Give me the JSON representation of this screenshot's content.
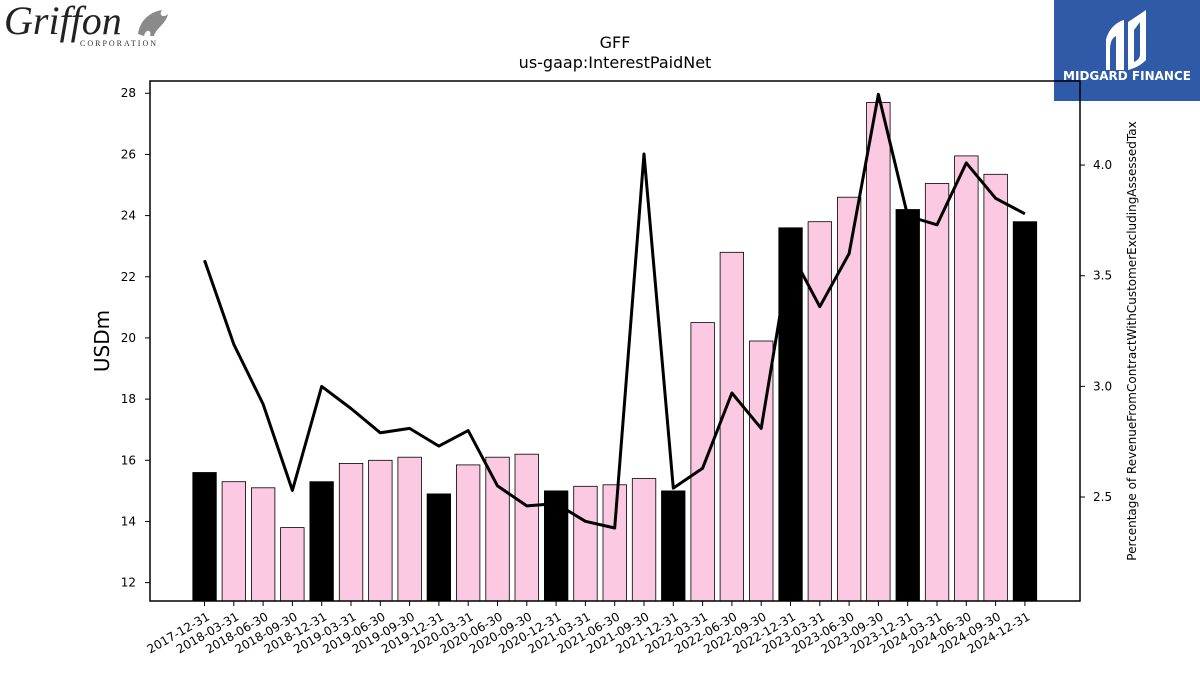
{
  "logos": {
    "left_wordmark": "Griffon",
    "left_subtext": "CORPORATION",
    "right_name": "MIDGARD FINANCE",
    "right_bg": "#2f5aa8"
  },
  "chart_data": {
    "type": "bar",
    "title": "GFF",
    "subtitle": "us-gaap:InterestPaidNet",
    "ylabel": "USDm",
    "y2label": "Percentage of RevenueFromContractWithCustomerExcludingAssessedTax",
    "ylim": [
      11.4,
      28.4
    ],
    "y2lim": [
      2.03,
      4.38
    ],
    "yticks": [
      12,
      14,
      16,
      18,
      20,
      22,
      24,
      26,
      28
    ],
    "y2ticks": [
      2.5,
      3.0,
      3.5,
      4.0
    ],
    "grid": false,
    "categories": [
      "2017-12-31",
      "2018-03-31",
      "2018-06-30",
      "2018-09-30",
      "2018-12-31",
      "2019-03-31",
      "2019-06-30",
      "2019-09-30",
      "2019-12-31",
      "2020-03-31",
      "2020-06-30",
      "2020-09-30",
      "2020-12-31",
      "2021-03-31",
      "2021-06-30",
      "2021-09-30",
      "2021-12-31",
      "2022-03-31",
      "2022-06-30",
      "2022-09-30",
      "2022-12-31",
      "2023-03-31",
      "2023-06-30",
      "2023-09-30",
      "2023-12-31",
      "2024-03-31",
      "2024-06-30",
      "2024-09-30",
      "2024-12-31"
    ],
    "series": [
      {
        "type": "bar",
        "values": [
          15.6,
          15.3,
          15.1,
          13.8,
          15.3,
          15.9,
          16.0,
          16.1,
          14.9,
          15.85,
          16.1,
          16.2,
          15.0,
          15.15,
          15.2,
          15.4,
          15.0,
          20.5,
          22.8,
          19.9,
          23.6,
          23.8,
          24.6,
          27.7,
          24.2,
          25.05,
          25.95,
          25.35,
          23.8
        ],
        "highlight": [
          true,
          false,
          false,
          false,
          true,
          false,
          false,
          false,
          true,
          false,
          false,
          false,
          true,
          false,
          false,
          false,
          true,
          false,
          false,
          false,
          true,
          false,
          false,
          false,
          true,
          false,
          false,
          false,
          true
        ]
      },
      {
        "type": "line",
        "axis": "right",
        "values": [
          3.57,
          3.19,
          2.92,
          2.53,
          3.0,
          2.9,
          2.79,
          2.81,
          2.73,
          2.8,
          2.55,
          2.46,
          2.47,
          2.39,
          2.36,
          4.05,
          2.54,
          2.63,
          2.97,
          2.81,
          3.61,
          3.36,
          3.6,
          4.32,
          3.77,
          3.73,
          4.01,
          3.85,
          3.78
        ]
      }
    ],
    "colors": {
      "bar_fill": "#fbc9e2",
      "bar_highlight": "#000000",
      "line": "#000000"
    }
  }
}
